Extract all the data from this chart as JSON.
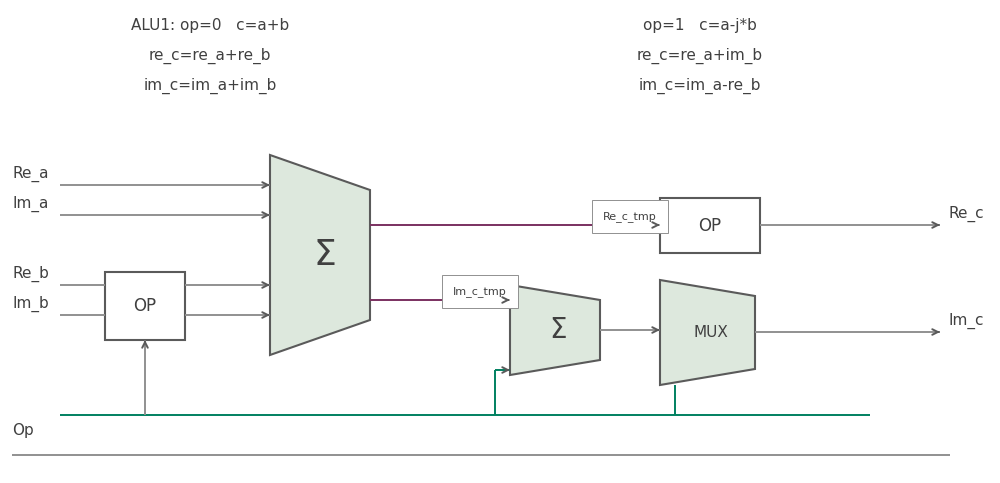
{
  "bg_color": "#ffffff",
  "line_color_gray": "#909090",
  "line_color_dark": "#5a5a5a",
  "line_color_purple": "#7a3060",
  "line_color_green": "#008060",
  "text_color": "#404040",
  "annotation_left1": "ALU1: op=0   c=a+b",
  "annotation_left2": "re_c=re_a+re_b",
  "annotation_left3": "im_c=im_a+im_b",
  "annotation_right1": "op=1   c=a-j*b",
  "annotation_right2": "re_c=re_a+im_b",
  "annotation_right3": "im_c=im_a-re_b",
  "label_Re_a": "Re_a",
  "label_Im_a": "Im_a",
  "label_Re_b": "Re_b",
  "label_Im_b": "Im_b",
  "label_Op": "Op",
  "label_Re_c": "Re_c",
  "label_Im_c": "Im_c",
  "label_Re_c_tmp": "Re_c_tmp",
  "label_Im_c_tmp": "Im_c_tmp",
  "label_OP1": "OP",
  "label_OP2": "OP",
  "label_Sigma1": "Σ",
  "label_Sigma2": "Σ",
  "label_MUX": "MUX",
  "trap_face": "#dde8dd",
  "op_box_face": "#ffffff"
}
